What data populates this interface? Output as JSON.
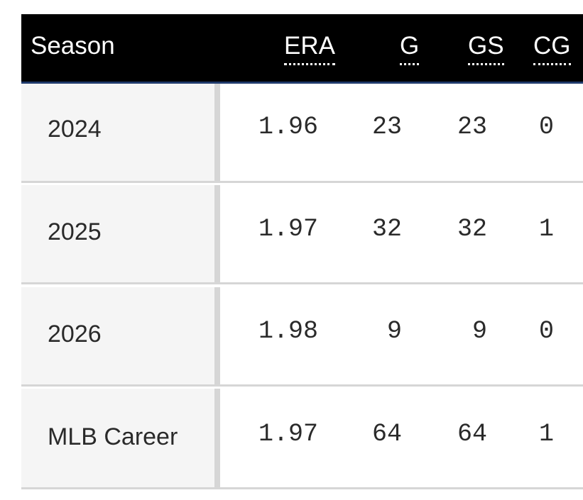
{
  "table": {
    "columns": {
      "season": "Season",
      "era": "ERA",
      "g": "G",
      "gs": "GS",
      "cg": "CG"
    },
    "rows": [
      {
        "season": "2024",
        "era": "1.96",
        "g": "23",
        "gs": "23",
        "cg": "0"
      },
      {
        "season": "2025",
        "era": "1.97",
        "g": "32",
        "gs": "32",
        "cg": "1"
      },
      {
        "season": "2026",
        "era": "1.98",
        "g": "9",
        "gs": "9",
        "cg": "0"
      },
      {
        "season": "MLB Career",
        "era": "1.97",
        "g": "64",
        "gs": "64",
        "cg": "1"
      }
    ]
  },
  "colors": {
    "header_bg": "#000000",
    "header_text": "#ffffff",
    "header_accent": "#1f3a6b",
    "season_cell_bg": "#f5f5f5",
    "grid_line": "#d6d6d6",
    "text": "#2a2a2a"
  }
}
